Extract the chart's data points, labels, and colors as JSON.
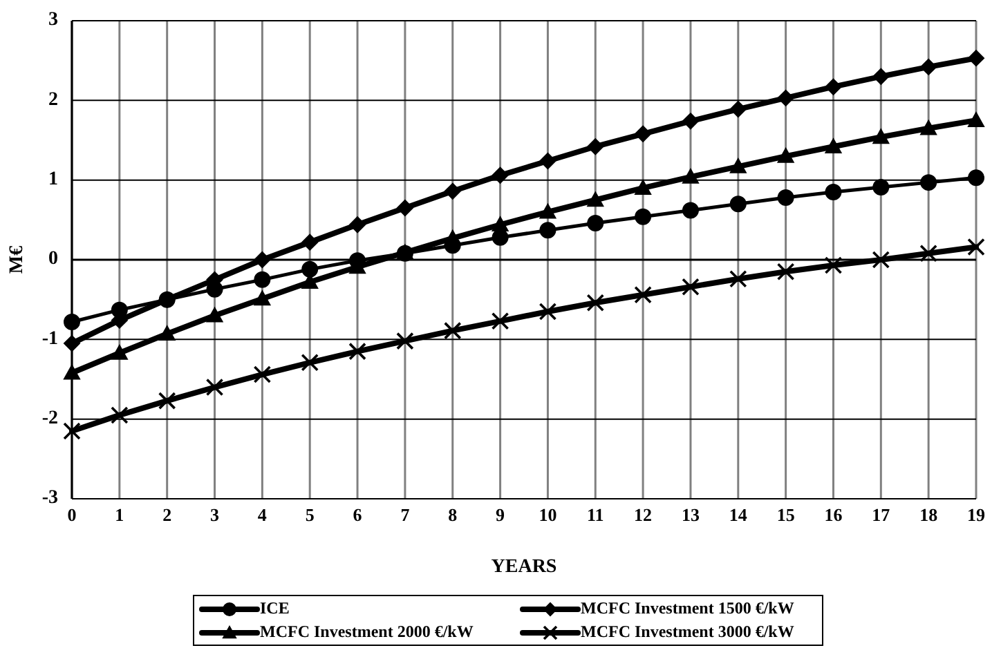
{
  "chart_data": {
    "type": "line",
    "xlabel": "YEARS",
    "ylabel": "M€",
    "x": [
      0,
      1,
      2,
      3,
      4,
      5,
      6,
      7,
      8,
      9,
      10,
      11,
      12,
      13,
      14,
      15,
      16,
      17,
      18,
      19
    ],
    "xlim": [
      0,
      19
    ],
    "xticks": [
      0,
      1,
      2,
      3,
      4,
      5,
      6,
      7,
      8,
      9,
      10,
      11,
      12,
      13,
      14,
      15,
      16,
      17,
      18,
      19
    ],
    "ylim": [
      -3,
      3
    ],
    "yticks": [
      -3,
      -2,
      -1,
      0,
      1,
      2,
      3
    ],
    "grid": true,
    "legend": "bottom",
    "series": [
      {
        "name": "ICE",
        "color": "#000000",
        "marker": "circle",
        "values": [
          -0.78,
          -0.63,
          -0.5,
          -0.37,
          -0.25,
          -0.12,
          -0.01,
          0.08,
          0.18,
          0.28,
          0.37,
          0.46,
          0.54,
          0.62,
          0.7,
          0.78,
          0.85,
          0.91,
          0.97,
          1.03
        ]
      },
      {
        "name": "MCFC Investment 1500 €/kW",
        "color": "#000000",
        "marker": "diamond",
        "values": [
          -1.05,
          -0.76,
          -0.5,
          -0.25,
          0.0,
          0.22,
          0.44,
          0.65,
          0.86,
          1.06,
          1.24,
          1.42,
          1.58,
          1.74,
          1.89,
          2.03,
          2.17,
          2.3,
          2.42,
          2.53
        ]
      },
      {
        "name": "MCFC Investment 2000 €/kW",
        "color": "#000000",
        "marker": "triangle",
        "values": [
          -1.42,
          -1.17,
          -0.93,
          -0.7,
          -0.49,
          -0.28,
          -0.09,
          0.09,
          0.27,
          0.44,
          0.6,
          0.75,
          0.9,
          1.04,
          1.17,
          1.3,
          1.42,
          1.54,
          1.65,
          1.75
        ]
      },
      {
        "name": "MCFC Investment 3000 €/kW",
        "color": "#000000",
        "marker": "cross",
        "values": [
          -2.15,
          -1.95,
          -1.77,
          -1.6,
          -1.44,
          -1.29,
          -1.15,
          -1.02,
          -0.89,
          -0.77,
          -0.65,
          -0.54,
          -0.44,
          -0.34,
          -0.24,
          -0.15,
          -0.07,
          0.0,
          0.08,
          0.16
        ]
      }
    ]
  }
}
